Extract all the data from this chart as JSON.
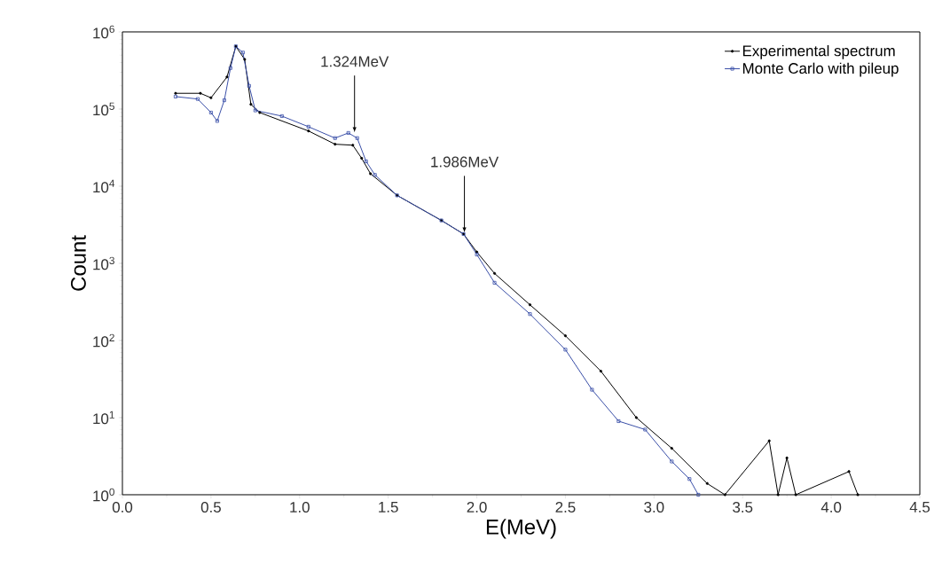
{
  "chart_data": {
    "type": "line",
    "xlabel": "E(MeV)",
    "ylabel": "Count",
    "log": "y",
    "legend": "top right",
    "grid": false,
    "xlim": [
      0,
      4.5
    ],
    "xticks": [
      {
        "value": 0,
        "label": "0.0"
      },
      0.5,
      {
        "value": 1,
        "label": "1.0"
      },
      1.5,
      {
        "value": 2,
        "label": "2.0"
      },
      2.5,
      {
        "value": 3,
        "label": "3.0"
      },
      3.5,
      {
        "value": 4,
        "label": "4.0"
      },
      4.5
    ],
    "ylim": [
      1,
      1000000
    ],
    "yticks": [
      {
        "value": 1,
        "label": "10$^{0}$"
      },
      {
        "value": 10,
        "label": "10$^{1}$"
      },
      {
        "value": 100,
        "label": "10$^{2}$"
      },
      {
        "value": 1000,
        "label": "10$^{3}$"
      },
      {
        "value": 10000,
        "label": "10$^{4}$"
      },
      {
        "value": 100000,
        "label": "10$^{5}$"
      },
      {
        "value": 1000000,
        "label": "10$^{6}$"
      }
    ],
    "series": [
      {
        "name": "Experimental spectrum",
        "color": "#000000",
        "marker": "circle",
        "x": [
          0.3,
          0.44,
          0.5,
          0.59,
          0.64,
          0.69,
          0.725,
          0.775,
          1.05,
          1.2,
          1.3,
          1.35,
          1.4,
          1.55,
          1.8,
          1.925,
          2.0,
          2.1,
          2.3,
          2.5,
          2.7,
          2.9,
          3.1,
          3.3,
          3.4,
          3.65,
          3.7,
          3.75,
          3.8,
          4.1,
          4.15
        ],
        "values": [
          160000,
          160000,
          140000,
          260000,
          650000,
          440000,
          115000,
          90000,
          52000,
          35000,
          34000,
          23000,
          14500,
          7600,
          3600,
          2400,
          1400,
          740,
          290,
          115,
          40,
          10,
          4,
          1.4,
          1,
          5,
          1,
          3,
          1,
          2,
          1
        ]
      },
      {
        "name": "Monte Carlo with pileup",
        "color": "#3a4fa8",
        "marker": "square",
        "x": [
          0.3,
          0.425,
          0.5,
          0.535,
          0.575,
          0.61,
          0.64,
          0.68,
          0.715,
          0.75,
          0.9,
          1.05,
          1.2,
          1.275,
          1.325,
          1.375,
          1.425,
          1.55,
          1.8,
          1.925,
          2.0,
          2.1,
          2.3,
          2.5,
          2.65,
          2.8,
          2.95,
          3.1,
          3.2,
          3.25
        ],
        "values": [
          145000,
          135000,
          90000,
          70000,
          130000,
          340000,
          650000,
          540000,
          200000,
          96000,
          81000,
          59000,
          42000,
          49000,
          42000,
          21000,
          14000,
          7600,
          3600,
          2400,
          1300,
          560,
          220,
          76,
          23,
          9,
          7,
          2.7,
          1.6,
          1
        ]
      }
    ],
    "annotations": [
      {
        "text": "1.324MeV",
        "x": 1.31,
        "y": 50000
      },
      {
        "text": "1.986MeV",
        "x": 1.93,
        "y": 2500
      }
    ]
  }
}
